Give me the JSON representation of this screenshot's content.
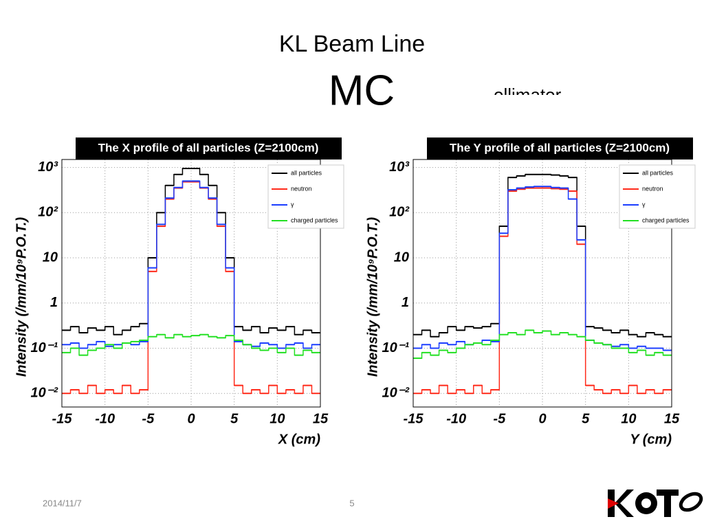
{
  "slide": {
    "title": "KL Beam Line",
    "subtitle": "MC",
    "overlay_text": "ollimator",
    "date": "2014/11/7",
    "page": "5"
  },
  "chart_data": [
    {
      "type": "histogram",
      "title": "The X profile of all particles (Z=2100cm)",
      "x_label": "X (cm)",
      "y_label": "Intensity (/mm/10⁹P.O.T.)",
      "bins": [
        -15,
        -14,
        -13,
        -12,
        -11,
        -10,
        -9,
        -8,
        -7,
        -6,
        -5,
        -4,
        -3,
        -2,
        -1,
        0,
        1,
        2,
        3,
        4,
        5,
        6,
        7,
        8,
        9,
        10,
        11,
        12,
        13,
        14,
        15
      ],
      "xlim": [
        -15,
        15
      ],
      "xticks": [
        -15,
        -10,
        -5,
        0,
        5,
        10,
        15
      ],
      "ylim": [
        0.005,
        1500
      ],
      "log_y": true,
      "yticks": [
        {
          "value": 0.01,
          "label": "10⁻²"
        },
        {
          "value": 0.1,
          "label": "10⁻¹"
        },
        1,
        10,
        {
          "value": 100,
          "label": "10²"
        },
        {
          "value": 1000,
          "label": "10³"
        }
      ],
      "grid": true,
      "legend": "upper right",
      "series": [
        {
          "name": "all particles",
          "color": "#000000",
          "values": [
            0.25,
            0.3,
            0.22,
            0.28,
            0.25,
            0.3,
            0.2,
            0.25,
            0.3,
            0.35,
            10,
            100,
            400,
            700,
            950,
            950,
            700,
            400,
            100,
            10,
            0.3,
            0.25,
            0.3,
            0.22,
            0.28,
            0.25,
            0.3,
            0.2,
            0.25,
            0.22
          ]
        },
        {
          "name": "neutron",
          "color": "#ff2a1a",
          "values": [
            0.01,
            0.012,
            0.01,
            0.015,
            0.01,
            0.012,
            0.01,
            0.015,
            0.01,
            0.012,
            5,
            50,
            200,
            350,
            480,
            480,
            350,
            200,
            50,
            5,
            0.015,
            0.01,
            0.012,
            0.01,
            0.015,
            0.01,
            0.012,
            0.01,
            0.015,
            0.01
          ]
        },
        {
          "name": "γ",
          "color": "#1a3cff",
          "values": [
            0.12,
            0.13,
            0.1,
            0.12,
            0.14,
            0.11,
            0.12,
            0.13,
            0.12,
            0.14,
            6,
            55,
            210,
            360,
            500,
            500,
            360,
            210,
            55,
            6,
            0.14,
            0.12,
            0.11,
            0.13,
            0.12,
            0.1,
            0.12,
            0.13,
            0.1,
            0.12
          ]
        },
        {
          "name": "charged particles",
          "color": "#22e022",
          "values": [
            0.08,
            0.1,
            0.07,
            0.09,
            0.1,
            0.12,
            0.1,
            0.13,
            0.14,
            0.15,
            0.18,
            0.2,
            0.17,
            0.2,
            0.18,
            0.19,
            0.2,
            0.18,
            0.17,
            0.19,
            0.15,
            0.12,
            0.1,
            0.09,
            0.1,
            0.08,
            0.1,
            0.07,
            0.09,
            0.08
          ]
        }
      ]
    },
    {
      "type": "histogram",
      "title": "The Y profile of all particles (Z=2100cm)",
      "x_label": "Y (cm)",
      "y_label": "Intensity (/mm/10⁹P.O.T.)",
      "bins": [
        -15,
        -14,
        -13,
        -12,
        -11,
        -10,
        -9,
        -8,
        -7,
        -6,
        -5,
        -4,
        -3,
        -2,
        -1,
        0,
        1,
        2,
        3,
        4,
        5,
        6,
        7,
        8,
        9,
        10,
        11,
        12,
        13,
        14,
        15
      ],
      "xlim": [
        -15,
        15
      ],
      "xticks": [
        -15,
        -10,
        -5,
        0,
        5,
        10,
        15
      ],
      "ylim": [
        0.005,
        1500
      ],
      "log_y": true,
      "yticks": [
        {
          "value": 0.01,
          "label": "10⁻²"
        },
        {
          "value": 0.1,
          "label": "10⁻¹"
        },
        1,
        10,
        {
          "value": 100,
          "label": "10²"
        },
        {
          "value": 1000,
          "label": "10³"
        }
      ],
      "grid": true,
      "legend": "upper right",
      "series": [
        {
          "name": "all particles",
          "color": "#000000",
          "values": [
            0.2,
            0.25,
            0.18,
            0.22,
            0.3,
            0.25,
            0.3,
            0.28,
            0.3,
            0.35,
            50,
            600,
            650,
            700,
            700,
            700,
            680,
            650,
            600,
            50,
            0.3,
            0.28,
            0.25,
            0.22,
            0.25,
            0.2,
            0.18,
            0.22,
            0.2,
            0.18
          ]
        },
        {
          "name": "neutron",
          "color": "#ff2a1a",
          "values": [
            0.01,
            0.012,
            0.01,
            0.015,
            0.01,
            0.012,
            0.01,
            0.015,
            0.01,
            0.012,
            30,
            300,
            330,
            350,
            350,
            350,
            340,
            330,
            300,
            20,
            0.015,
            0.012,
            0.01,
            0.012,
            0.01,
            0.015,
            0.01,
            0.012,
            0.01,
            0.012
          ]
        },
        {
          "name": "γ",
          "color": "#1a3cff",
          "values": [
            0.1,
            0.12,
            0.1,
            0.13,
            0.12,
            0.14,
            0.12,
            0.13,
            0.15,
            0.14,
            35,
            320,
            350,
            370,
            380,
            380,
            360,
            350,
            200,
            25,
            0.15,
            0.13,
            0.12,
            0.11,
            0.12,
            0.1,
            0.11,
            0.1,
            0.1,
            0.09
          ]
        },
        {
          "name": "charged particles",
          "color": "#22e022",
          "values": [
            0.06,
            0.08,
            0.07,
            0.09,
            0.08,
            0.1,
            0.12,
            0.13,
            0.12,
            0.15,
            0.2,
            0.22,
            0.2,
            0.25,
            0.22,
            0.24,
            0.2,
            0.22,
            0.2,
            0.18,
            0.15,
            0.13,
            0.12,
            0.1,
            0.1,
            0.08,
            0.09,
            0.07,
            0.08,
            0.07
          ]
        }
      ]
    }
  ]
}
